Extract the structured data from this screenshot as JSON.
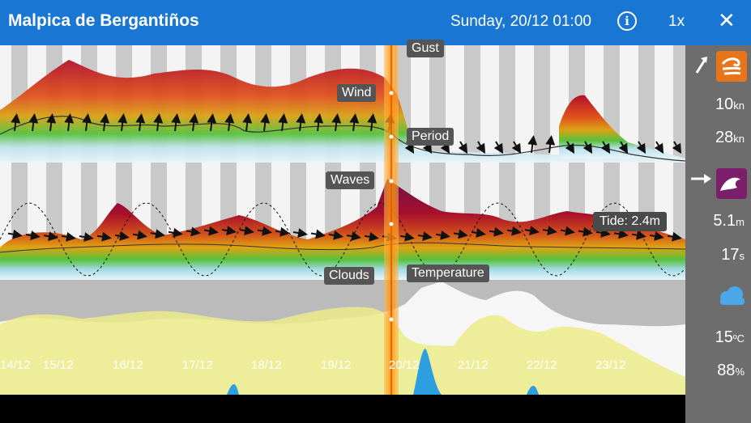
{
  "header": {
    "title": "Malpica de Bergantiños",
    "datetime": "Sunday, 20/12 01:00",
    "info_icon": "info-icon",
    "speed": "1x",
    "close_icon": "close-icon"
  },
  "chart": {
    "layers": {
      "gust": "Gust",
      "wind": "Wind",
      "period": "Period",
      "waves": "Waves",
      "clouds": "Clouds",
      "temperature": "Temperature"
    },
    "tide_label": "Tide: 2.4m",
    "days": [
      "14/12",
      "15/12",
      "16/12",
      "17/12",
      "18/12",
      "19/12",
      "20/12",
      "21/12",
      "22/12",
      "23/12"
    ]
  },
  "sidebar": {
    "wind_dir_icon": "wind-direction-arrow-icon",
    "wind_icon": "wind-icon",
    "wind_speed": "10",
    "wind_unit": "kn",
    "gust_speed": "28",
    "gust_unit": "kn",
    "wave_dir_icon": "wave-direction-arrow-icon",
    "wave_icon": "wave-icon",
    "wave_height": "5.1",
    "wave_height_unit": "m",
    "wave_period": "17",
    "wave_period_unit": "s",
    "cloud_icon": "cloud-icon",
    "temperature": "15",
    "temperature_unit": "ºC",
    "cloud_cover": "88",
    "cloud_cover_unit": "%"
  },
  "colors": {
    "header": "#1976d2",
    "sidebar": "#6d6d6d",
    "wind_icon_bg": "#e8751a",
    "wave_icon_bg": "#7b1f6a",
    "cursor": "#ff9800"
  }
}
